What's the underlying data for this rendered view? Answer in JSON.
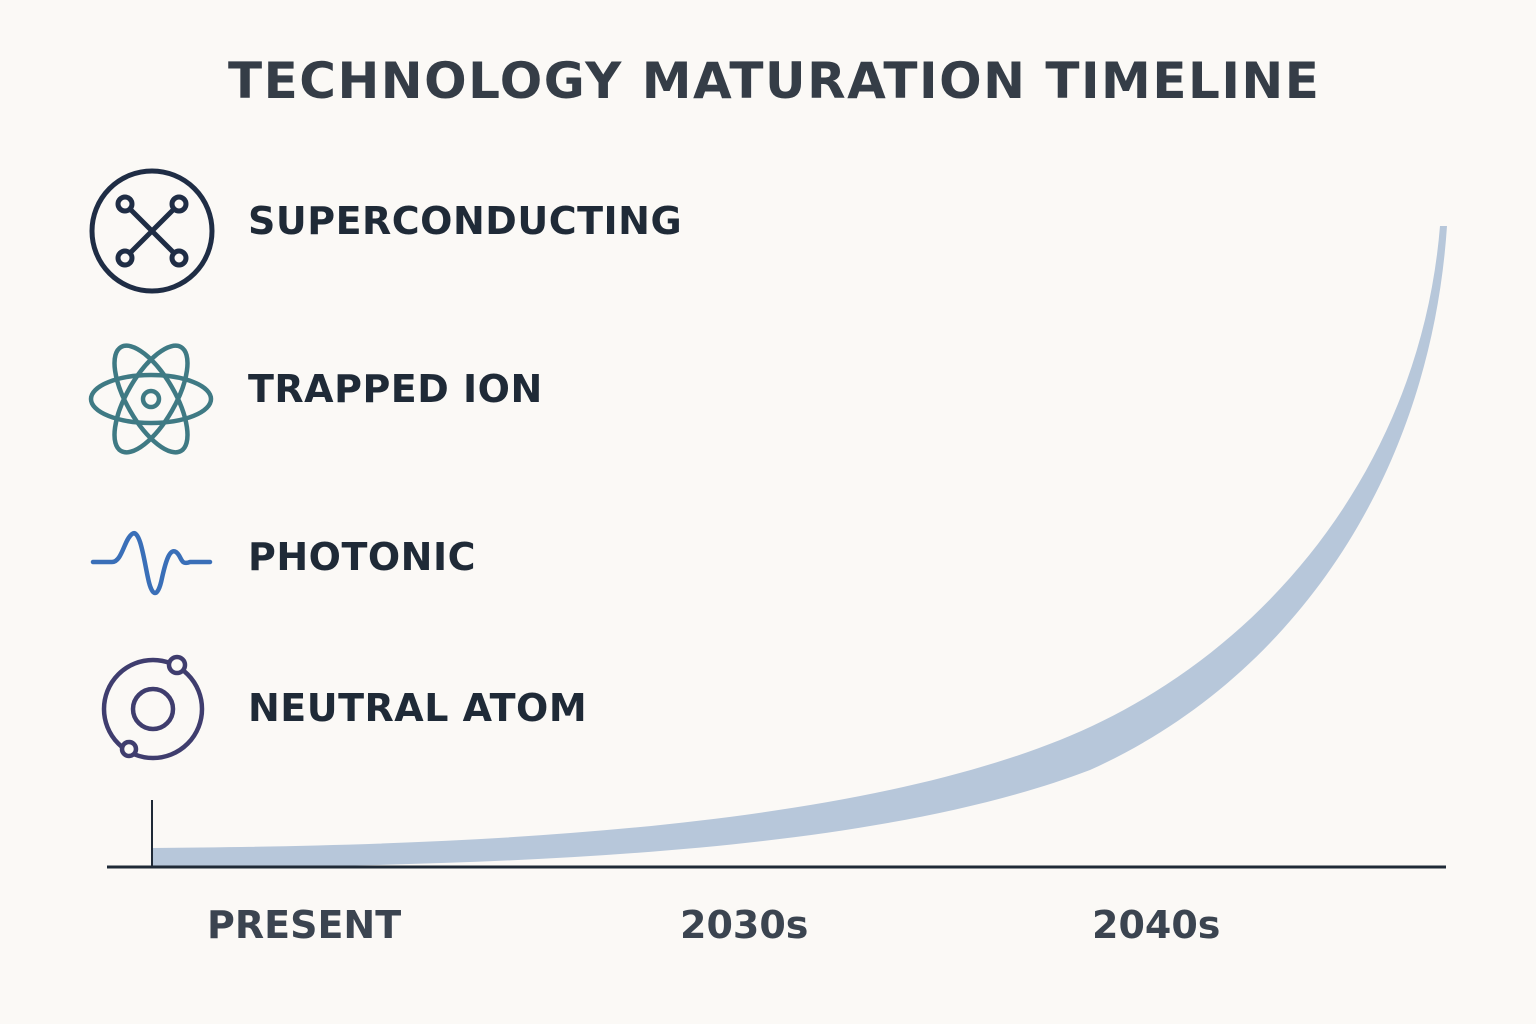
{
  "title": "TECHNOLOGY MATURATION TIMELINE",
  "technologies": [
    {
      "label": "SUPERCONDUCTING",
      "icon": "superconducting-circuit-icon",
      "color": "#1f2d45"
    },
    {
      "label": "TRAPPED ION",
      "icon": "atom-orbit-icon",
      "color": "#3f7a84"
    },
    {
      "label": "PHOTONIC",
      "icon": "waveform-icon",
      "color": "#3a6fb8"
    },
    {
      "label": "NEUTRAL ATOM",
      "icon": "neutral-atom-icon",
      "color": "#3f3d6e"
    }
  ],
  "timeline": {
    "axis_labels": [
      "PRESENT",
      "2030s",
      "2040s"
    ],
    "curve_color": "#b7c7da",
    "axis_color": "#1f2a37"
  }
}
